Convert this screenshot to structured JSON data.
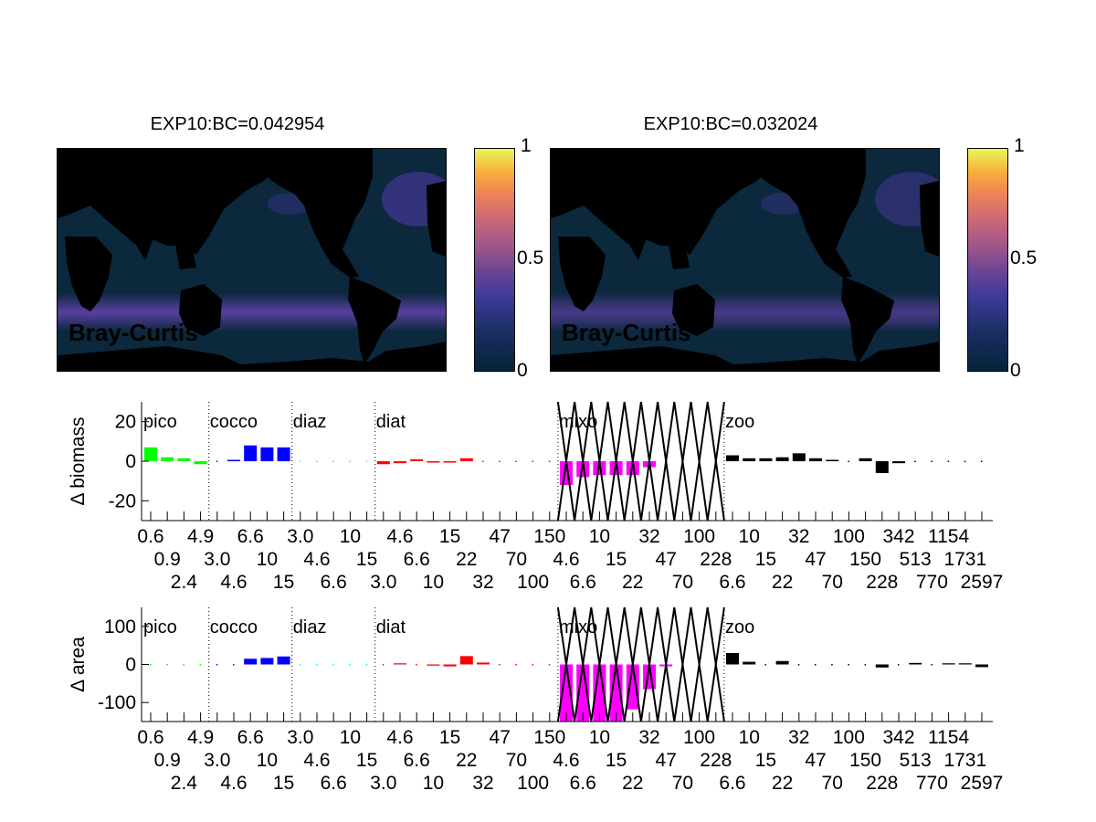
{
  "maps": [
    {
      "title": "EXP10:BC=0.042954",
      "label": "Bray-Curtis",
      "colorbar_ticks": [
        "1",
        "0.5",
        "0"
      ]
    },
    {
      "title": "EXP10:BC=0.032024",
      "label": "Bray-Curtis",
      "colorbar_ticks": [
        "1",
        "0.5",
        "0"
      ]
    }
  ],
  "chart_data": [
    {
      "type": "bar",
      "ylabel": "Δ biomass",
      "ylim": [
        -30,
        30
      ],
      "yticks": [
        -20,
        0,
        20
      ],
      "ytick_labels": [
        "-20",
        "0",
        "20"
      ],
      "groups": [
        {
          "name": "pico",
          "color": "#00ff00",
          "values": [
            7,
            2,
            1.5,
            -1.5
          ]
        },
        {
          "name": "cocco",
          "color": "#0000ff",
          "values": [
            0.2,
            0.7,
            8,
            7,
            7
          ]
        },
        {
          "name": "diaz",
          "color": "#00ffff",
          "values": [
            0,
            0,
            0,
            0,
            0
          ]
        },
        {
          "name": "diat",
          "color": "#ff0000",
          "values": [
            -1.5,
            -1,
            1,
            -0.7,
            -0.7,
            1.5,
            0.5,
            0,
            0,
            0,
            0
          ]
        },
        {
          "name": "mixo",
          "color": "#ff00ff",
          "values": [
            -12,
            -8,
            -7,
            -7,
            -7,
            -3,
            0,
            0,
            0,
            0
          ]
        },
        {
          "name": "zoo",
          "color": "#000000",
          "values": [
            3,
            1.5,
            1.5,
            2,
            4,
            1.5,
            0.7,
            0.5,
            1.5,
            -6,
            -1,
            0,
            0,
            0,
            0,
            0
          ]
        }
      ]
    },
    {
      "type": "bar",
      "ylabel": "Δ area",
      "ylim": [
        -150,
        150
      ],
      "yticks": [
        -100,
        0,
        100
      ],
      "ytick_labels": [
        "-100",
        "0",
        "100"
      ],
      "groups": [
        {
          "name": "pico",
          "color": "#00ff00",
          "values": [
            0,
            0,
            0,
            0
          ]
        },
        {
          "name": "cocco",
          "color": "#0000ff",
          "values": [
            0,
            0,
            15,
            17,
            21
          ]
        },
        {
          "name": "diaz",
          "color": "#00ffff",
          "values": [
            0,
            0,
            0,
            0,
            0
          ]
        },
        {
          "name": "diat",
          "color": "#ff0000",
          "values": [
            0,
            3,
            0,
            -3,
            -5,
            22,
            5,
            0,
            0,
            0,
            0
          ]
        },
        {
          "name": "mixo",
          "color": "#ff00ff",
          "values": [
            -150,
            -150,
            -150,
            -150,
            -118,
            -65,
            -5,
            0,
            0,
            0
          ]
        },
        {
          "name": "zoo",
          "color": "#000000",
          "values": [
            30,
            7,
            0,
            9,
            0,
            0,
            0,
            0,
            0,
            -8,
            0,
            4,
            0,
            3,
            3,
            -7
          ]
        }
      ]
    }
  ],
  "xtick_labels": [
    "0.6",
    "0.9",
    "2.4",
    "4.9",
    "3.0",
    "4.6",
    "6.6",
    "10",
    "15",
    "3.0",
    "4.6",
    "6.6",
    "10",
    "15",
    "3.0",
    "4.6",
    "6.6",
    "10",
    "15",
    "22",
    "32",
    "47",
    "70",
    "100",
    "150",
    "4.6",
    "6.6",
    "10",
    "15",
    "22",
    "32",
    "47",
    "70",
    "100",
    "228",
    "6.6",
    "10",
    "15",
    "22",
    "32",
    "47",
    "70",
    "100",
    "150",
    "228",
    "342",
    "513",
    "770",
    "1154",
    "1731",
    "2597"
  ],
  "mixo_crossed_out": true
}
